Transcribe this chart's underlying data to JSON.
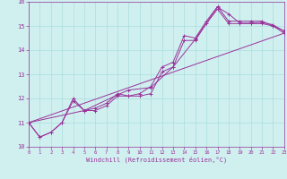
{
  "xlabel": "Windchill (Refroidissement éolien,°C)",
  "ylabel": "",
  "xlim": [
    0,
    23
  ],
  "ylim": [
    10,
    16
  ],
  "yticks": [
    10,
    11,
    12,
    13,
    14,
    15,
    16
  ],
  "xticks": [
    0,
    1,
    2,
    3,
    4,
    5,
    6,
    7,
    8,
    9,
    10,
    11,
    12,
    13,
    14,
    15,
    16,
    17,
    18,
    19,
    20,
    21,
    22,
    23
  ],
  "bg_color": "#d0f0f0",
  "line_color": "#993399",
  "grid_color": "#aadddd",
  "line1": [
    [
      0,
      11.0
    ],
    [
      1,
      10.4
    ],
    [
      2,
      10.6
    ],
    [
      3,
      11.0
    ],
    [
      4,
      11.9
    ],
    [
      5,
      11.5
    ],
    [
      6,
      11.5
    ],
    [
      7,
      11.7
    ],
    [
      8,
      12.1
    ],
    [
      9,
      12.1
    ],
    [
      10,
      12.1
    ],
    [
      11,
      12.2
    ],
    [
      12,
      13.1
    ],
    [
      13,
      13.3
    ],
    [
      14,
      14.4
    ],
    [
      15,
      14.4
    ],
    [
      16,
      15.1
    ],
    [
      17,
      15.7
    ],
    [
      18,
      15.1
    ],
    [
      19,
      15.1
    ],
    [
      20,
      15.1
    ],
    [
      21,
      15.1
    ],
    [
      22,
      15.0
    ],
    [
      23,
      14.7
    ]
  ],
  "line2": [
    [
      0,
      11.0
    ],
    [
      1,
      10.4
    ],
    [
      2,
      10.6
    ],
    [
      3,
      11.0
    ],
    [
      4,
      12.0
    ],
    [
      5,
      11.5
    ],
    [
      6,
      11.6
    ],
    [
      7,
      11.8
    ],
    [
      8,
      12.2
    ],
    [
      9,
      12.1
    ],
    [
      10,
      12.2
    ],
    [
      11,
      12.5
    ],
    [
      12,
      13.3
    ],
    [
      13,
      13.5
    ],
    [
      14,
      14.6
    ],
    [
      15,
      14.5
    ],
    [
      16,
      15.2
    ],
    [
      17,
      15.8
    ],
    [
      18,
      15.2
    ],
    [
      19,
      15.2
    ],
    [
      20,
      15.2
    ],
    [
      21,
      15.2
    ],
    [
      22,
      15.0
    ],
    [
      23,
      14.8
    ]
  ],
  "line3_straight": [
    [
      0,
      11.0
    ],
    [
      23,
      14.7
    ]
  ],
  "line4": [
    [
      0,
      11.0
    ],
    [
      5,
      11.5
    ],
    [
      8,
      12.15
    ],
    [
      9,
      12.35
    ],
    [
      11,
      12.45
    ],
    [
      13,
      13.3
    ],
    [
      15,
      14.45
    ],
    [
      17,
      15.78
    ],
    [
      18,
      15.5
    ],
    [
      19,
      15.12
    ],
    [
      20,
      15.12
    ],
    [
      21,
      15.15
    ],
    [
      22,
      15.05
    ],
    [
      23,
      14.78
    ]
  ]
}
